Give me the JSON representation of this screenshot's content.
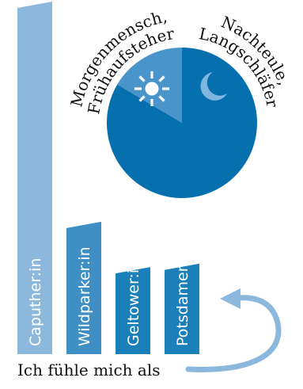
{
  "chart_data": [
    {
      "type": "bar",
      "categories": [
        "Caputher:in",
        "Wildparker:in",
        "Geltower:in",
        "Potsdamer:in"
      ],
      "values": [
        100,
        37,
        24,
        25
      ],
      "ylim": [
        0,
        100
      ],
      "colors": [
        "#8db8dd",
        "#3f8fc5",
        "#1b7fb9",
        "#1b7fb9"
      ]
    },
    {
      "type": "pie",
      "categories": [
        "Morgenmensch, Frühaufsteher",
        "Nachteule, Langschläfer"
      ],
      "label_lines": [
        [
          "Morgenmensch,",
          "Frühaufsteher"
        ],
        [
          "Nachteule,",
          "Langschläfer"
        ]
      ],
      "values": [
        16.5,
        83.5
      ],
      "colors": [
        "#4a94cc",
        "#066fad"
      ],
      "icons": [
        "sun-icon",
        "moon-icon"
      ]
    }
  ],
  "caption": "Ich fühle mich als",
  "colors": {
    "arrow": "#8db8dd",
    "icon": "#ffffff",
    "moon": "#7fb6e0"
  }
}
